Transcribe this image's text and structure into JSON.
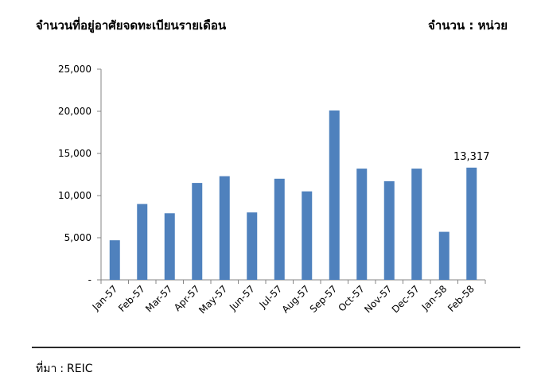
{
  "header": {
    "title": "จำนวนที่อยู่อาศัยจดทะเบียนรายเดือน",
    "unit": "จำนวน : หน่วย"
  },
  "footer": {
    "source_label": "ที่มา",
    "source_sep": ":",
    "source_value": "REIC"
  },
  "chart_data": {
    "type": "bar",
    "title": "",
    "xlabel": "",
    "ylabel": "",
    "categories": [
      "Jan-57",
      "Feb-57",
      "Mar-57",
      "Apr-57",
      "May-57",
      "Jun-57",
      "Jul-57",
      "Aug-57",
      "Sep-57",
      "Oct-57",
      "Nov-57",
      "Dec-57",
      "Jan-58",
      "Feb-58"
    ],
    "values": [
      4700,
      9000,
      7900,
      11500,
      12300,
      8000,
      12000,
      10500,
      20100,
      13200,
      11700,
      13200,
      5700,
      13317
    ],
    "ylim": [
      0,
      25000
    ],
    "yticks": [
      0,
      5000,
      10000,
      15000,
      20000,
      25000
    ],
    "ytick_labels": [
      "-",
      "5,000",
      "10,000",
      "15,000",
      "20,000",
      "25,000"
    ],
    "data_labels": [
      {
        "category": "Feb-58",
        "text": "13,317"
      }
    ],
    "bar_color": "#4f81bd",
    "grid": false,
    "legend": "none"
  }
}
